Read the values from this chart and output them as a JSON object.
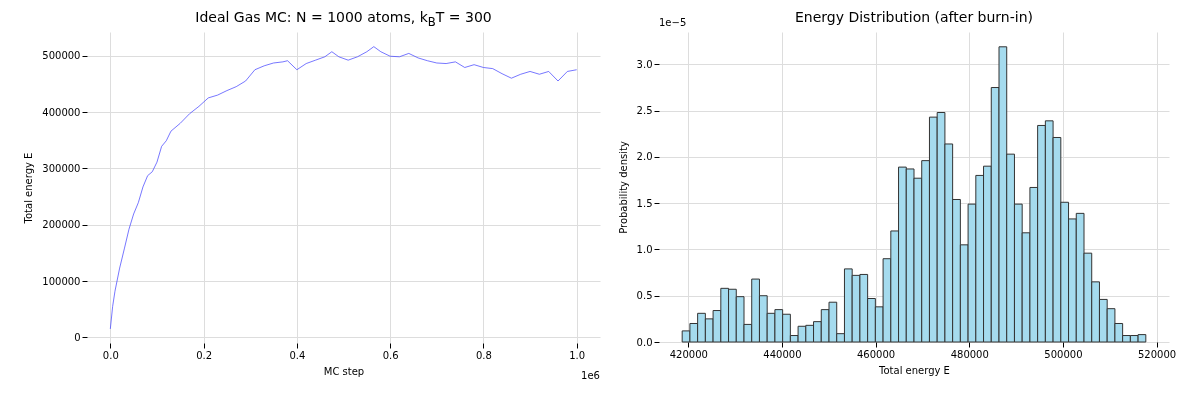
{
  "chart_data": [
    {
      "type": "line",
      "title": "Ideal Gas MC: N = 1000 atoms, k$_{B}$T = 300",
      "xlabel": "MC step",
      "ylabel": "Total energy E",
      "color": "#3c3cff",
      "grid": true,
      "annotations": [
        "1e6"
      ],
      "xlim": [
        -0.05,
        1.05
      ],
      "ylim": [
        -10000,
        542000
      ],
      "xticks": [
        {
          "value": 0,
          "label": "0.0"
        },
        {
          "value": 0.2,
          "label": "0.2"
        },
        {
          "value": 0.4,
          "label": "0.4"
        },
        {
          "value": 0.6,
          "label": "0.6"
        },
        {
          "value": 0.8,
          "label": "0.8"
        },
        {
          "value": 1,
          "label": "1.0"
        }
      ],
      "yticks": [
        0,
        100000,
        200000,
        300000,
        400000,
        500000
      ],
      "x": [
        0,
        0.005,
        0.01,
        0.02,
        0.03,
        0.04,
        0.05,
        0.06,
        0.07,
        0.08,
        0.09,
        0.1,
        0.11,
        0.12,
        0.13,
        0.15,
        0.17,
        0.19,
        0.21,
        0.23,
        0.25,
        0.27,
        0.29,
        0.31,
        0.33,
        0.35,
        0.37,
        0.38,
        0.4,
        0.42,
        0.44,
        0.46,
        0.475,
        0.49,
        0.51,
        0.53,
        0.55,
        0.565,
        0.58,
        0.6,
        0.62,
        0.64,
        0.66,
        0.68,
        0.7,
        0.72,
        0.74,
        0.76,
        0.78,
        0.8,
        0.82,
        0.84,
        0.86,
        0.88,
        0.9,
        0.92,
        0.94,
        0.96,
        0.98,
        1
      ],
      "values": [
        15000,
        55000,
        82000,
        123000,
        157000,
        192000,
        219000,
        239000,
        267000,
        287000,
        294000,
        311000,
        339000,
        349000,
        366000,
        380000,
        397000,
        410000,
        425000,
        430000,
        438000,
        445000,
        455000,
        475000,
        482000,
        487000,
        489000,
        491000,
        475000,
        486000,
        492000,
        498000,
        507000,
        498000,
        492000,
        498000,
        507000,
        516000,
        507000,
        499000,
        498000,
        504000,
        496000,
        491000,
        487000,
        486000,
        489000,
        479000,
        484000,
        479000,
        477000,
        468000,
        460000,
        467000,
        472000,
        467000,
        472000,
        455000,
        472000,
        475000
      ]
    },
    {
      "type": "histogram",
      "title": "Energy Distribution (after burn-in)",
      "xlabel": "Total energy E",
      "ylabel": "Probability density",
      "color": "#a5dbee",
      "grid": true,
      "annotations": [
        "1e−5"
      ],
      "xlim": [
        413750,
        522650
      ],
      "ylim": [
        0,
        3.35
      ],
      "xticks": [
        420000,
        440000,
        460000,
        480000,
        500000,
        520000
      ],
      "yticks": [
        {
          "value": 0,
          "label": "0.0"
        },
        {
          "value": 0.5,
          "label": "0.5"
        },
        {
          "value": 1,
          "label": "1.0"
        },
        {
          "value": 1.5,
          "label": "1.5"
        },
        {
          "value": 2,
          "label": "2.0"
        },
        {
          "value": 2.5,
          "label": "2.5"
        },
        {
          "value": 3,
          "label": "3.0"
        }
      ],
      "bins": [
        418700,
        420350,
        422000,
        423650,
        425300,
        426950,
        428600,
        430250,
        431900,
        433550,
        435200,
        436850,
        438500,
        440150,
        441800,
        443450,
        445100,
        446750,
        448400,
        450050,
        451700,
        453350,
        455000,
        456650,
        458300,
        459950,
        461600,
        463250,
        464900,
        466550,
        468200,
        469850,
        471500,
        473150,
        474800,
        476450,
        478100,
        479750,
        481400,
        483050,
        484700,
        486350,
        488000,
        489650,
        491300,
        492950,
        494600,
        496250,
        497900,
        499550,
        501200,
        502850,
        504500,
        506150,
        507800,
        509450,
        511100,
        512750,
        514400,
        516050,
        517700
      ],
      "values": [
        0.12,
        0.2,
        0.31,
        0.25,
        0.34,
        0.58,
        0.57,
        0.49,
        0.19,
        0.68,
        0.5,
        0.31,
        0.35,
        0.3,
        0.07,
        0.17,
        0.18,
        0.22,
        0.35,
        0.43,
        0.09,
        0.79,
        0.72,
        0.73,
        0.47,
        0.38,
        0.9,
        1.2,
        1.89,
        1.87,
        1.77,
        1.96,
        2.43,
        2.48,
        2.14,
        1.54,
        1.05,
        1.49,
        1.8,
        1.9,
        2.75,
        3.19,
        2.03,
        1.49,
        1.18,
        1.67,
        2.34,
        2.39,
        2.21,
        1.51,
        1.33,
        1.39,
        0.96,
        0.65,
        0.46,
        0.36,
        0.2,
        0.07,
        0.07,
        0.08
      ]
    }
  ]
}
